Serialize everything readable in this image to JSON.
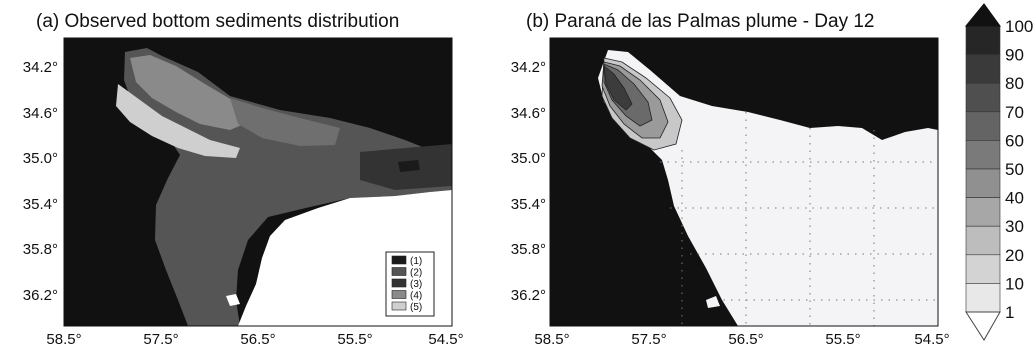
{
  "panels": {
    "a": {
      "title": "(a) Observed bottom sediments distribution",
      "y_ticks": [
        "34.2°",
        "34.6°",
        "35.0°",
        "35.4°",
        "35.8°",
        "36.2°"
      ],
      "x_ticks": [
        "58.5°",
        "57.5°",
        "56.5°",
        "55.5°",
        "54.5°"
      ],
      "legend": [
        "(1)",
        "(2)",
        "(3)",
        "(4)",
        "(5)"
      ],
      "legend_colors": [
        "#1a1a1a",
        "#555555",
        "#333333",
        "#8a8a8a",
        "#cfcfcf"
      ]
    },
    "b": {
      "title": "(b) Paraná de las Palmas plume - Day 12",
      "y_ticks": [
        "34.2°",
        "34.6°",
        "35.0°",
        "35.4°",
        "35.8°",
        "36.2°"
      ],
      "x_ticks": [
        "58.5°",
        "57.5°",
        "56.5°",
        "55.5°",
        "54.5°"
      ]
    }
  },
  "colorbar": {
    "labels": [
      "100",
      "90",
      "80",
      "70",
      "60",
      "50",
      "40",
      "30",
      "20",
      "10",
      "1"
    ],
    "colors": [
      "#262626",
      "#3a3a3a",
      "#4f4f4f",
      "#646464",
      "#7a7a7a",
      "#909090",
      "#a7a7a7",
      "#bdbdbd",
      "#d3d3d3",
      "#e8e8e8"
    ]
  },
  "colors": {
    "land": "#111111",
    "ocean": "#ffffff",
    "plume_bg": "#f4f4f6"
  }
}
